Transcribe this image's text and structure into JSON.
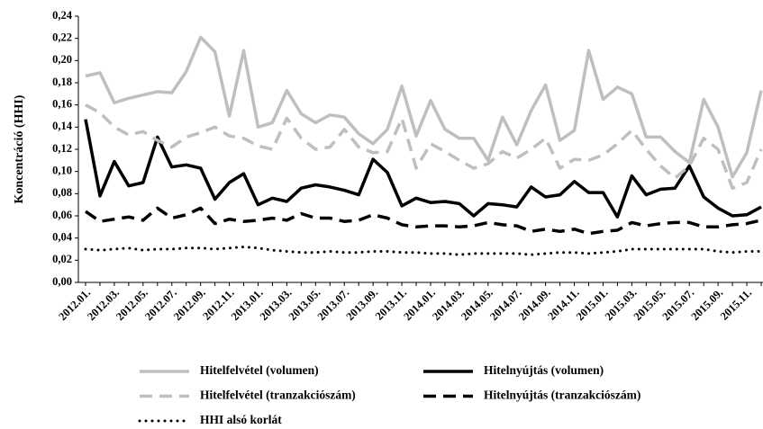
{
  "chart_data": {
    "type": "line",
    "y_label": "Koncentráció (HHI)",
    "categories": [
      "2012.01.",
      null,
      "2012.03.",
      null,
      "2012.05.",
      null,
      "2012.07.",
      null,
      "2012.09.",
      null,
      "2012.11.",
      null,
      "2013.01.",
      null,
      "2013.03.",
      null,
      "2013.05.",
      null,
      "2013.07.",
      null,
      "2013.09.",
      null,
      "2013.11.",
      null,
      "2014.01.",
      null,
      "2014.03.",
      null,
      "2014.05.",
      null,
      "2014.07.",
      null,
      "2014.09.",
      null,
      "2014.11.",
      null,
      "2015.01.",
      null,
      "2015.03.",
      null,
      "2015.05.",
      null,
      "2015.07.",
      null,
      "2015.09.",
      null,
      "2015.11.",
      null
    ],
    "ylim": [
      0,
      0.24
    ],
    "yticks": [
      {
        "value": 0,
        "label": "0,00"
      },
      {
        "value": 0.02,
        "label": "0,02"
      },
      {
        "value": 0.04,
        "label": "0,04"
      },
      {
        "value": 0.06,
        "label": "0,06"
      },
      {
        "value": 0.08,
        "label": "0,08"
      },
      {
        "value": 0.1,
        "label": "0,10"
      },
      {
        "value": 0.12,
        "label": "0,12"
      },
      {
        "value": 0.14,
        "label": "0,14"
      },
      {
        "value": 0.16,
        "label": "0,16"
      },
      {
        "value": 0.18,
        "label": "0,18"
      },
      {
        "value": 0.2,
        "label": "0,20"
      },
      {
        "value": 0.22,
        "label": "0,22"
      },
      {
        "value": 0.24,
        "label": "0,24"
      }
    ],
    "grid": false,
    "legend": "bottom",
    "series": [
      {
        "name": "Hitelfelvétel (volumen)",
        "color": "#bfbfbf",
        "style": "solid",
        "values": [
          0.186,
          0.189,
          0.162,
          0.166,
          0.169,
          0.172,
          0.171,
          0.19,
          0.221,
          0.208,
          0.15,
          0.209,
          0.14,
          0.144,
          0.173,
          0.152,
          0.144,
          0.151,
          0.149,
          0.134,
          0.125,
          0.138,
          0.177,
          0.132,
          0.164,
          0.138,
          0.13,
          0.13,
          0.11,
          0.149,
          0.124,
          0.155,
          0.178,
          0.128,
          0.137,
          0.209,
          0.165,
          0.176,
          0.17,
          0.131,
          0.131,
          0.118,
          0.108,
          0.165,
          0.14,
          0.095,
          0.117,
          0.173
        ]
      },
      {
        "name": "Hitelnyújtás (volumen)",
        "color": "#000000",
        "style": "solid",
        "values": [
          0.147,
          0.078,
          0.109,
          0.087,
          0.09,
          0.131,
          0.104,
          0.106,
          0.103,
          0.075,
          0.09,
          0.098,
          0.07,
          0.076,
          0.073,
          0.085,
          0.088,
          0.086,
          0.083,
          0.079,
          0.111,
          0.099,
          0.069,
          0.076,
          0.072,
          0.073,
          0.071,
          0.06,
          0.071,
          0.07,
          0.068,
          0.086,
          0.077,
          0.079,
          0.091,
          0.081,
          0.081,
          0.059,
          0.096,
          0.079,
          0.084,
          0.085,
          0.105,
          0.077,
          0.067,
          0.06,
          0.061,
          0.068
        ]
      },
      {
        "name": "Hitelfelvétel (tranzakciószám)",
        "color": "#bfbfbf",
        "style": "dashed",
        "values": [
          0.16,
          0.153,
          0.14,
          0.133,
          0.136,
          0.128,
          0.122,
          0.131,
          0.135,
          0.14,
          0.132,
          0.13,
          0.123,
          0.12,
          0.148,
          0.13,
          0.12,
          0.122,
          0.138,
          0.122,
          0.117,
          0.118,
          0.148,
          0.103,
          0.125,
          0.118,
          0.11,
          0.103,
          0.107,
          0.118,
          0.112,
          0.12,
          0.13,
          0.103,
          0.111,
          0.11,
          0.115,
          0.125,
          0.137,
          0.12,
          0.105,
          0.094,
          0.105,
          0.13,
          0.12,
          0.085,
          0.09,
          0.12
        ]
      },
      {
        "name": "Hitelnyújtás (tranzakciószám)",
        "color": "#000000",
        "style": "dashed",
        "values": [
          0.064,
          0.055,
          0.057,
          0.059,
          0.056,
          0.067,
          0.058,
          0.061,
          0.067,
          0.053,
          0.057,
          0.055,
          0.056,
          0.058,
          0.056,
          0.062,
          0.058,
          0.058,
          0.055,
          0.056,
          0.061,
          0.058,
          0.052,
          0.05,
          0.051,
          0.051,
          0.05,
          0.051,
          0.054,
          0.052,
          0.051,
          0.046,
          0.048,
          0.046,
          0.048,
          0.044,
          0.046,
          0.047,
          0.054,
          0.051,
          0.053,
          0.054,
          0.054,
          0.05,
          0.05,
          0.052,
          0.053,
          0.056
        ]
      },
      {
        "name": "HHI alsó korlát",
        "color": "#000000",
        "style": "dotted",
        "values": [
          0.03,
          0.029,
          0.03,
          0.031,
          0.029,
          0.03,
          0.03,
          0.031,
          0.031,
          0.03,
          0.031,
          0.032,
          0.031,
          0.029,
          0.028,
          0.027,
          0.027,
          0.028,
          0.027,
          0.027,
          0.028,
          0.028,
          0.027,
          0.027,
          0.026,
          0.026,
          0.025,
          0.026,
          0.026,
          0.026,
          0.026,
          0.025,
          0.026,
          0.027,
          0.027,
          0.026,
          0.027,
          0.028,
          0.03,
          0.03,
          0.03,
          0.03,
          0.03,
          0.03,
          0.028,
          0.027,
          0.028,
          0.028
        ]
      }
    ]
  }
}
